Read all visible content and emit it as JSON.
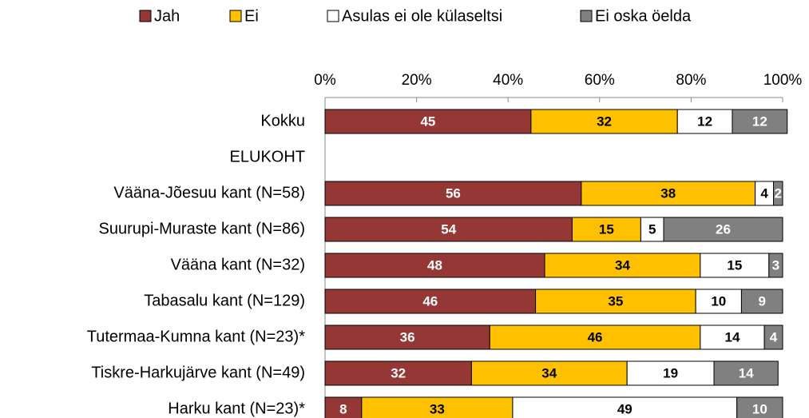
{
  "chart_data": {
    "type": "stacked-bar-horizontal",
    "categories": [
      "Kokku",
      "ELUKOHT",
      "Vääna-Jõesuu kant (N=58)",
      "Suurupi-Muraste kant (N=86)",
      "Vääna kant (N=32)",
      "Tabasalu kant (N=129)",
      "Tutermaa-Kumna kant (N=23)*",
      "Tiskre-Harkujärve kant (N=49)",
      "Harku kant (N=23)*"
    ],
    "series": [
      {
        "name": "Jah",
        "color": "#953735",
        "label_color": "#ffffff",
        "values": [
          45,
          null,
          56,
          54,
          48,
          46,
          36,
          32,
          8
        ]
      },
      {
        "name": "Ei",
        "color": "#ffc000",
        "label_color": "#000000",
        "values": [
          32,
          null,
          38,
          15,
          34,
          35,
          46,
          34,
          33
        ]
      },
      {
        "name": "Asulas ei ole külaseltsi",
        "color": "#ffffff",
        "label_color": "#000000",
        "values": [
          12,
          null,
          4,
          5,
          15,
          10,
          14,
          19,
          49
        ]
      },
      {
        "name": "Ei oska öelda",
        "color": "#808080",
        "label_color": "#ffffff",
        "values": [
          12,
          null,
          2,
          26,
          3,
          9,
          4,
          14,
          10
        ]
      }
    ],
    "xlim": [
      0,
      100
    ],
    "xticks": [
      {
        "value": 0,
        "label": "0%"
      },
      {
        "value": 20,
        "label": "20%"
      },
      {
        "value": 40,
        "label": "40%"
      },
      {
        "value": 60,
        "label": "60%"
      },
      {
        "value": 80,
        "label": "80%"
      },
      {
        "value": 100,
        "label": "100%"
      }
    ],
    "legend": "top"
  }
}
